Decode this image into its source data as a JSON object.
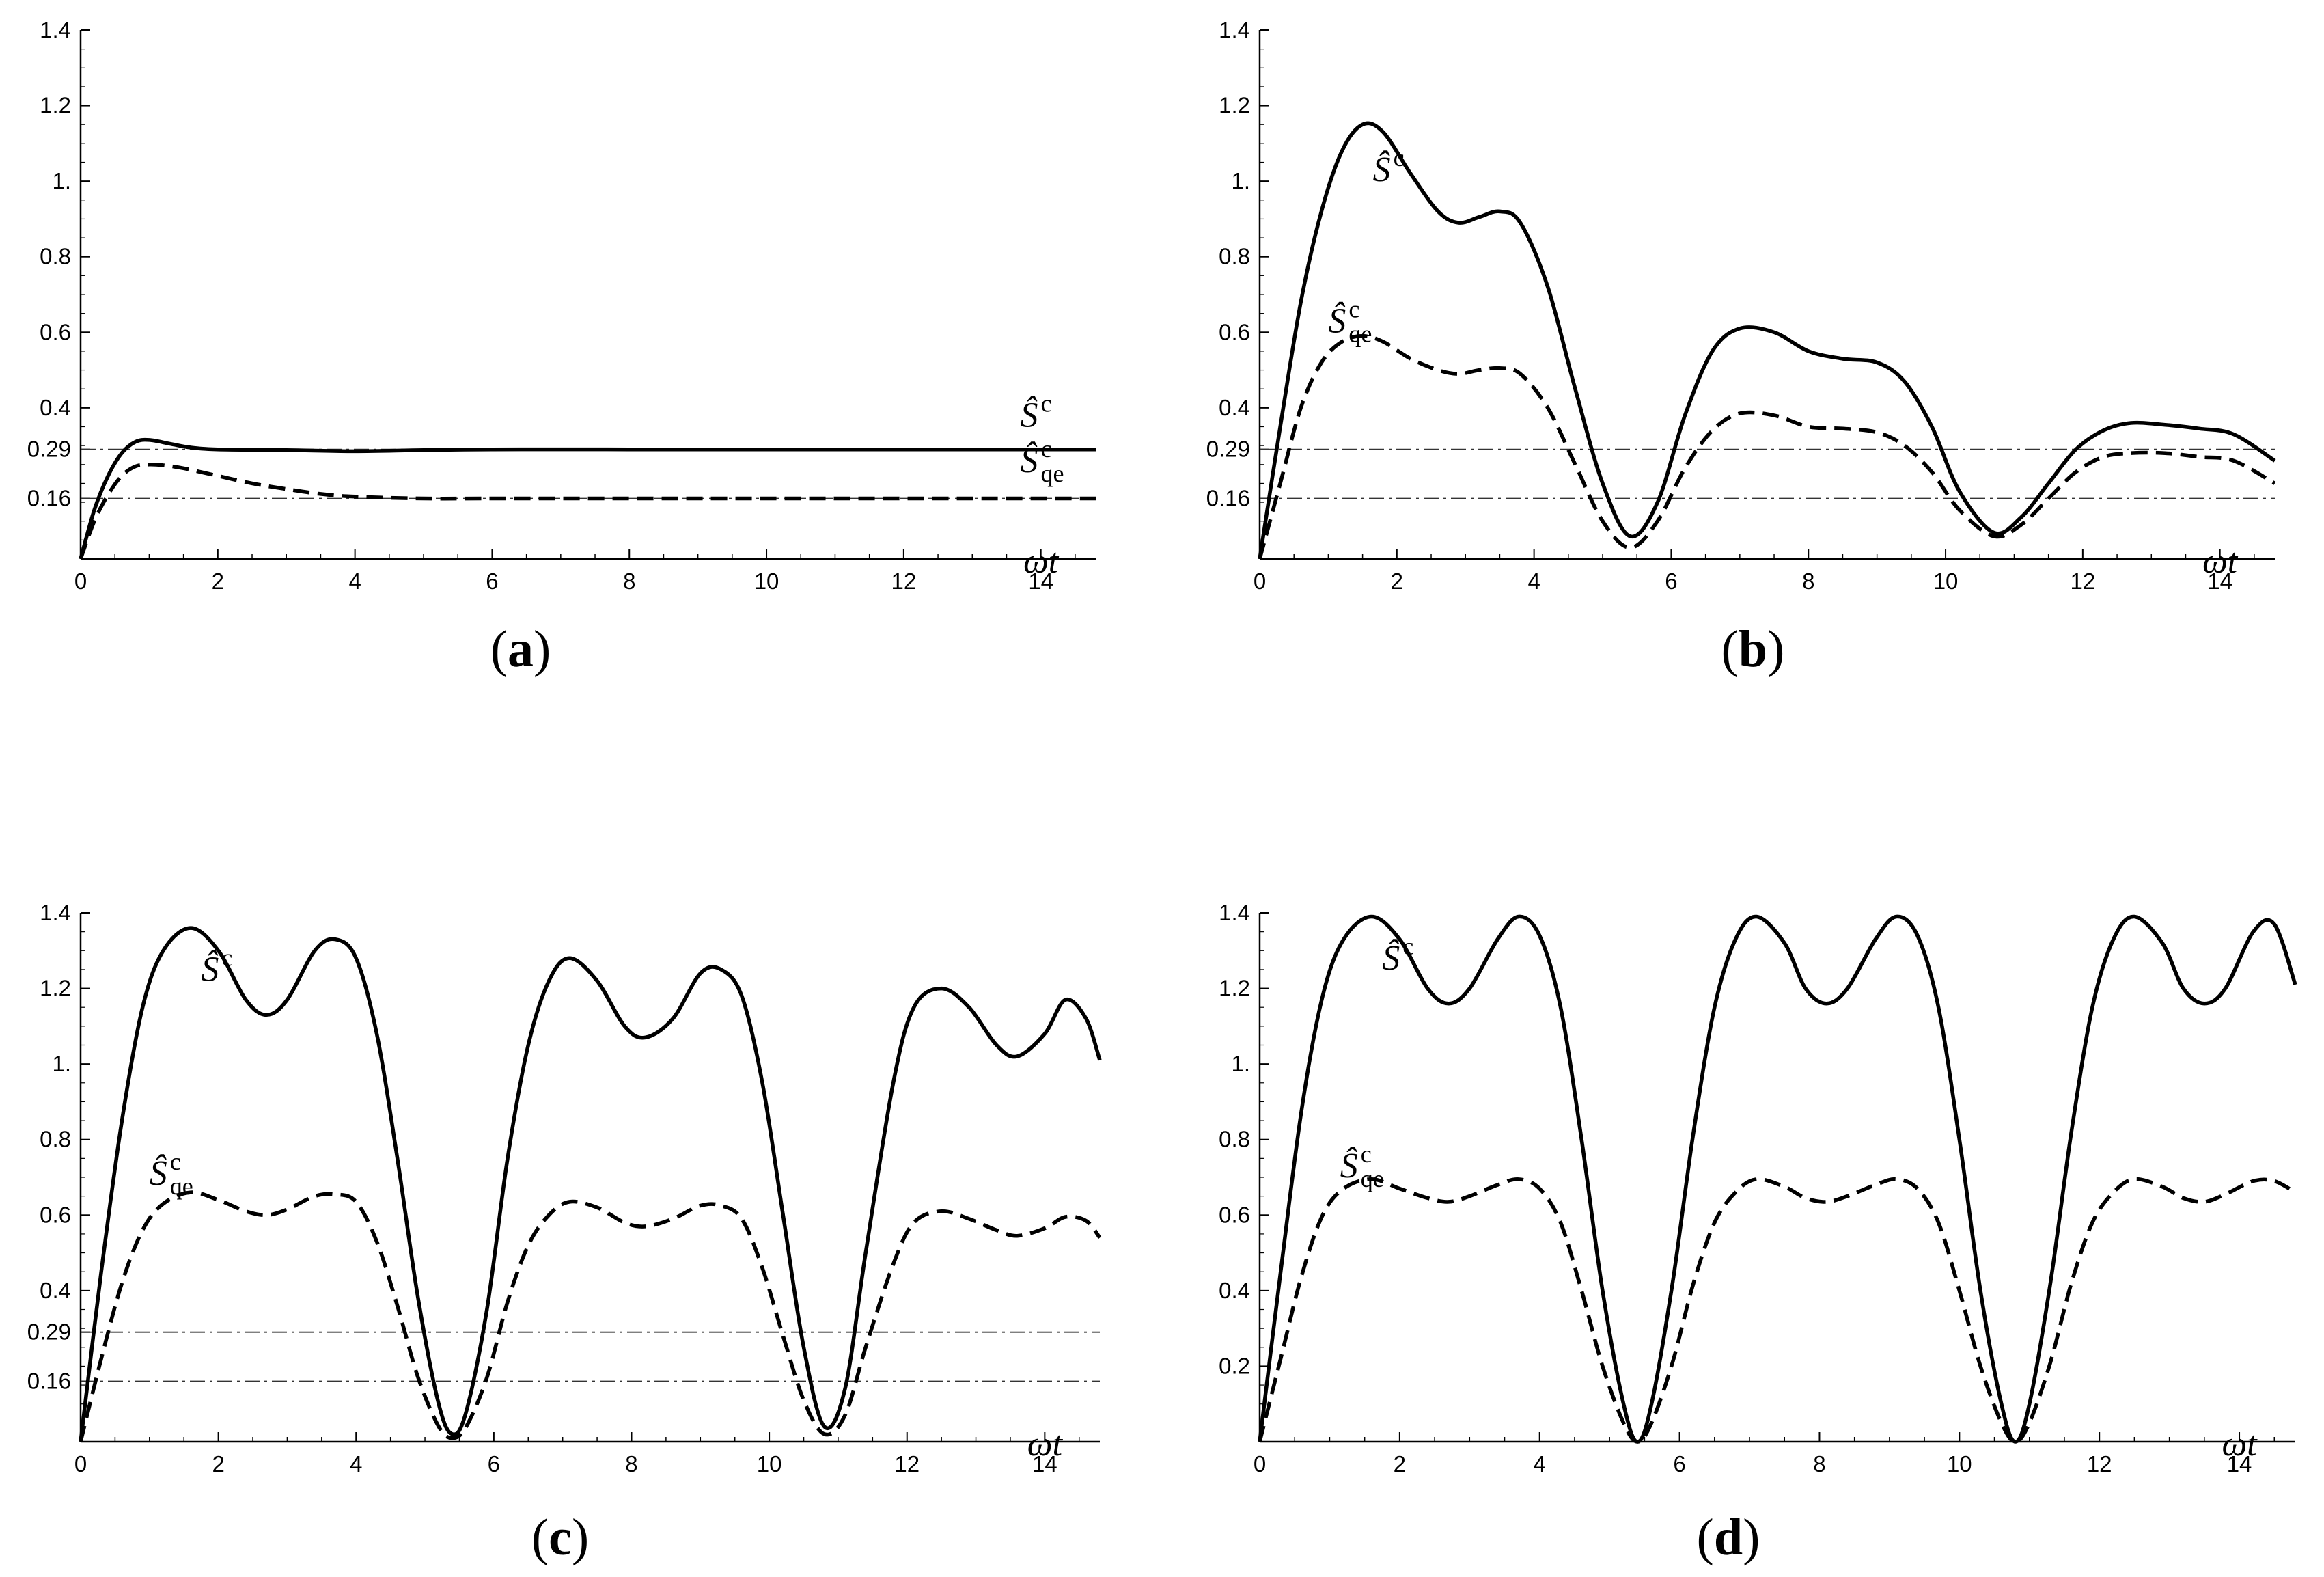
{
  "chart_data": [
    {
      "type": "line",
      "panel_label": "(a)",
      "xlabel": "ωt",
      "xlim": [
        0,
        14.8
      ],
      "ylim": [
        0,
        1.4
      ],
      "x_ticks": [
        0,
        2,
        4,
        6,
        8,
        10,
        12,
        14
      ],
      "y_ticks": [
        "0.16",
        "0.29",
        "0.4",
        "0.6",
        "0.8",
        "1.",
        "1.2",
        "1.4"
      ],
      "reference_lines": [
        0.29,
        0.16
      ],
      "series": [
        {
          "label_base": "Ŝ",
          "label_sup": "c",
          "label_sub": "",
          "style": "solid",
          "x": [
            0,
            0.2,
            0.4,
            0.6,
            0.8,
            1.0,
            1.3,
            1.6,
            2.0,
            3.0,
            4.0,
            5.0,
            6.0,
            8.0,
            10.0,
            12.0,
            14.0,
            14.8
          ],
          "y": [
            0,
            0.13,
            0.22,
            0.28,
            0.31,
            0.315,
            0.305,
            0.295,
            0.29,
            0.288,
            0.285,
            0.288,
            0.29,
            0.29,
            0.29,
            0.29,
            0.29,
            0.29
          ],
          "label_at": [
            13.7,
            0.35
          ]
        },
        {
          "label_base": "Ŝ",
          "label_sup": "c",
          "label_sub": "qe",
          "style": "dashed",
          "x": [
            0,
            0.2,
            0.4,
            0.6,
            0.8,
            1.0,
            1.2,
            1.5,
            2.0,
            2.5,
            3.0,
            3.5,
            4.0,
            5.0,
            6.0,
            8.0,
            10.0,
            12.0,
            14.0,
            14.8
          ],
          "y": [
            0,
            0.1,
            0.17,
            0.22,
            0.245,
            0.25,
            0.248,
            0.24,
            0.22,
            0.2,
            0.185,
            0.172,
            0.165,
            0.16,
            0.16,
            0.16,
            0.16,
            0.16,
            0.16,
            0.16
          ],
          "label_at": [
            13.7,
            0.23
          ]
        }
      ]
    },
    {
      "type": "line",
      "panel_label": "(b)",
      "xlabel": "ωt",
      "xlim": [
        0,
        14.8
      ],
      "ylim": [
        0,
        1.4
      ],
      "x_ticks": [
        0,
        2,
        4,
        6,
        8,
        10,
        12,
        14
      ],
      "y_ticks": [
        "0.16",
        "0.29",
        "0.4",
        "0.6",
        "0.8",
        "1.",
        "1.2",
        "1.4"
      ],
      "reference_lines": [
        0.29,
        0.16
      ],
      "series": [
        {
          "label_base": "Ŝ",
          "label_sup": "c",
          "label_sub": "",
          "style": "solid",
          "x": [
            0,
            0.3,
            0.6,
            0.9,
            1.2,
            1.5,
            1.8,
            2.2,
            2.6,
            2.9,
            3.2,
            3.5,
            3.8,
            4.2,
            4.6,
            5.0,
            5.4,
            5.8,
            6.2,
            6.6,
            7.0,
            7.5,
            8.0,
            8.5,
            9.0,
            9.4,
            9.8,
            10.2,
            10.7,
            11.1,
            11.5,
            11.9,
            12.3,
            12.7,
            13.2,
            13.7,
            14.2,
            14.8
          ],
          "y": [
            0,
            0.35,
            0.68,
            0.92,
            1.08,
            1.15,
            1.13,
            1.02,
            0.92,
            0.89,
            0.905,
            0.92,
            0.89,
            0.72,
            0.45,
            0.2,
            0.06,
            0.15,
            0.38,
            0.55,
            0.61,
            0.6,
            0.55,
            0.53,
            0.52,
            0.47,
            0.35,
            0.18,
            0.07,
            0.11,
            0.2,
            0.29,
            0.34,
            0.36,
            0.355,
            0.345,
            0.33,
            0.26
          ],
          "label_at": [
            1.65,
            1.0
          ]
        },
        {
          "label_base": "Ŝ",
          "label_sup": "c",
          "label_sub": "qe",
          "style": "dashed",
          "x": [
            0,
            0.3,
            0.6,
            0.9,
            1.2,
            1.5,
            1.8,
            2.2,
            2.6,
            2.9,
            3.2,
            3.5,
            3.8,
            4.2,
            4.6,
            5.0,
            5.4,
            5.8,
            6.2,
            6.6,
            7.0,
            7.5,
            8.0,
            8.5,
            9.0,
            9.4,
            9.8,
            10.2,
            10.7,
            11.1,
            11.5,
            11.9,
            12.3,
            12.7,
            13.2,
            13.7,
            14.2,
            14.8
          ],
          "y": [
            0,
            0.2,
            0.4,
            0.52,
            0.575,
            0.59,
            0.575,
            0.53,
            0.5,
            0.49,
            0.5,
            0.505,
            0.49,
            0.4,
            0.25,
            0.1,
            0.03,
            0.1,
            0.24,
            0.34,
            0.385,
            0.38,
            0.35,
            0.345,
            0.335,
            0.3,
            0.23,
            0.13,
            0.06,
            0.09,
            0.16,
            0.23,
            0.27,
            0.28,
            0.28,
            0.27,
            0.26,
            0.2
          ],
          "label_at": [
            1.0,
            0.6
          ]
        }
      ]
    },
    {
      "type": "line",
      "panel_label": "(c)",
      "xlabel": "ωt",
      "xlim": [
        0,
        14.8
      ],
      "ylim": [
        0,
        1.4
      ],
      "x_ticks": [
        0,
        2,
        4,
        6,
        8,
        10,
        12,
        14
      ],
      "y_ticks": [
        "0.16",
        "0.29",
        "0.4",
        "0.6",
        "0.8",
        "1.",
        "1.2",
        "1.4"
      ],
      "reference_lines": [
        0.29,
        0.16
      ],
      "series": [
        {
          "label_base": "Ŝ",
          "label_sup": "c",
          "label_sub": "",
          "style": "solid",
          "x": [
            0,
            0.3,
            0.6,
            0.9,
            1.2,
            1.6,
            2.0,
            2.4,
            2.7,
            3.0,
            3.4,
            3.7,
            4.0,
            4.3,
            4.6,
            4.9,
            5.2,
            5.4,
            5.6,
            5.9,
            6.2,
            6.5,
            6.8,
            7.1,
            7.5,
            7.9,
            8.2,
            8.6,
            9.0,
            9.3,
            9.6,
            9.9,
            10.2,
            10.5,
            10.8,
            11.1,
            11.4,
            11.8,
            12.1,
            12.5,
            12.9,
            13.3,
            13.6,
            14.0,
            14.3,
            14.6,
            14.8
          ],
          "y": [
            0,
            0.45,
            0.85,
            1.15,
            1.3,
            1.36,
            1.3,
            1.17,
            1.13,
            1.17,
            1.3,
            1.33,
            1.28,
            1.08,
            0.75,
            0.38,
            0.1,
            0.02,
            0.08,
            0.35,
            0.75,
            1.05,
            1.22,
            1.28,
            1.22,
            1.1,
            1.07,
            1.12,
            1.24,
            1.25,
            1.18,
            0.95,
            0.6,
            0.25,
            0.04,
            0.14,
            0.5,
            0.95,
            1.15,
            1.2,
            1.15,
            1.05,
            1.02,
            1.08,
            1.17,
            1.12,
            1.01
          ],
          "label_at": [
            1.75,
            1.22
          ]
        },
        {
          "label_base": "Ŝ",
          "label_sup": "c",
          "label_sub": "qe",
          "style": "dashed",
          "x": [
            0,
            0.3,
            0.6,
            0.9,
            1.2,
            1.6,
            2.0,
            2.4,
            2.7,
            3.0,
            3.4,
            3.7,
            4.0,
            4.3,
            4.6,
            4.9,
            5.2,
            5.4,
            5.6,
            5.9,
            6.2,
            6.5,
            6.8,
            7.1,
            7.5,
            7.9,
            8.2,
            8.6,
            9.0,
            9.3,
            9.6,
            9.9,
            10.2,
            10.5,
            10.8,
            11.1,
            11.4,
            11.8,
            12.1,
            12.5,
            12.9,
            13.3,
            13.6,
            14.0,
            14.3,
            14.6,
            14.8
          ],
          "y": [
            0,
            0.22,
            0.42,
            0.56,
            0.63,
            0.66,
            0.64,
            0.61,
            0.6,
            0.615,
            0.65,
            0.655,
            0.635,
            0.53,
            0.36,
            0.17,
            0.04,
            0.01,
            0.04,
            0.17,
            0.37,
            0.52,
            0.6,
            0.635,
            0.62,
            0.58,
            0.57,
            0.59,
            0.625,
            0.625,
            0.59,
            0.46,
            0.28,
            0.11,
            0.02,
            0.07,
            0.25,
            0.47,
            0.58,
            0.61,
            0.59,
            0.56,
            0.545,
            0.565,
            0.595,
            0.585,
            0.54
          ],
          "label_at": [
            1.0,
            0.68
          ]
        }
      ]
    },
    {
      "type": "line",
      "panel_label": "(d)",
      "xlabel": "ωt",
      "xlim": [
        0,
        14.8
      ],
      "ylim": [
        0,
        1.4
      ],
      "x_ticks": [
        0,
        2,
        4,
        6,
        8,
        10,
        12,
        14
      ],
      "y_ticks": [
        "0.2",
        "0.4",
        "0.6",
        "0.8",
        "1.",
        "1.2",
        "1.4"
      ],
      "reference_lines": [],
      "series": [
        {
          "label_base": "Ŝ",
          "label_sup": "c",
          "label_sub": "",
          "style": "solid",
          "x": [
            0,
            0.3,
            0.6,
            0.9,
            1.2,
            1.6,
            2.0,
            2.4,
            2.7,
            3.0,
            3.4,
            3.7,
            4.0,
            4.3,
            4.6,
            4.9,
            5.2,
            5.4,
            5.6,
            5.9,
            6.2,
            6.5,
            6.8,
            7.1,
            7.5,
            7.8,
            8.1,
            8.4,
            8.8,
            9.1,
            9.4,
            9.7,
            10.0,
            10.3,
            10.6,
            10.8,
            11.0,
            11.3,
            11.6,
            11.9,
            12.2,
            12.5,
            12.9,
            13.2,
            13.5,
            13.8,
            14.2,
            14.5,
            14.8
          ],
          "y": [
            0,
            0.45,
            0.88,
            1.18,
            1.33,
            1.39,
            1.33,
            1.2,
            1.16,
            1.2,
            1.33,
            1.39,
            1.34,
            1.15,
            0.8,
            0.4,
            0.1,
            0.0,
            0.1,
            0.42,
            0.82,
            1.15,
            1.33,
            1.39,
            1.32,
            1.2,
            1.16,
            1.2,
            1.33,
            1.39,
            1.34,
            1.15,
            0.8,
            0.4,
            0.1,
            0.0,
            0.1,
            0.42,
            0.82,
            1.15,
            1.33,
            1.39,
            1.32,
            1.2,
            1.16,
            1.2,
            1.35,
            1.37,
            1.21
          ],
          "label_at": [
            1.75,
            1.25
          ]
        },
        {
          "label_base": "Ŝ",
          "label_sup": "c",
          "label_sub": "qe",
          "style": "dashed",
          "x": [
            0,
            0.3,
            0.6,
            0.9,
            1.2,
            1.6,
            2.0,
            2.4,
            2.7,
            3.0,
            3.4,
            3.7,
            4.0,
            4.3,
            4.6,
            4.9,
            5.2,
            5.4,
            5.6,
            5.9,
            6.2,
            6.5,
            6.8,
            7.1,
            7.5,
            7.8,
            8.1,
            8.4,
            8.8,
            9.1,
            9.4,
            9.7,
            10.0,
            10.3,
            10.6,
            10.8,
            11.0,
            11.3,
            11.6,
            11.9,
            12.2,
            12.5,
            12.9,
            13.2,
            13.5,
            13.8,
            14.2,
            14.5,
            14.8
          ],
          "y": [
            0,
            0.22,
            0.44,
            0.6,
            0.67,
            0.695,
            0.67,
            0.645,
            0.635,
            0.65,
            0.68,
            0.695,
            0.67,
            0.58,
            0.4,
            0.2,
            0.05,
            0.0,
            0.05,
            0.21,
            0.42,
            0.58,
            0.66,
            0.695,
            0.675,
            0.645,
            0.635,
            0.65,
            0.68,
            0.695,
            0.67,
            0.58,
            0.4,
            0.2,
            0.05,
            0.0,
            0.05,
            0.21,
            0.42,
            0.58,
            0.66,
            0.695,
            0.675,
            0.645,
            0.635,
            0.655,
            0.69,
            0.69,
            0.66
          ],
          "label_at": [
            1.15,
            0.7
          ]
        }
      ]
    }
  ]
}
